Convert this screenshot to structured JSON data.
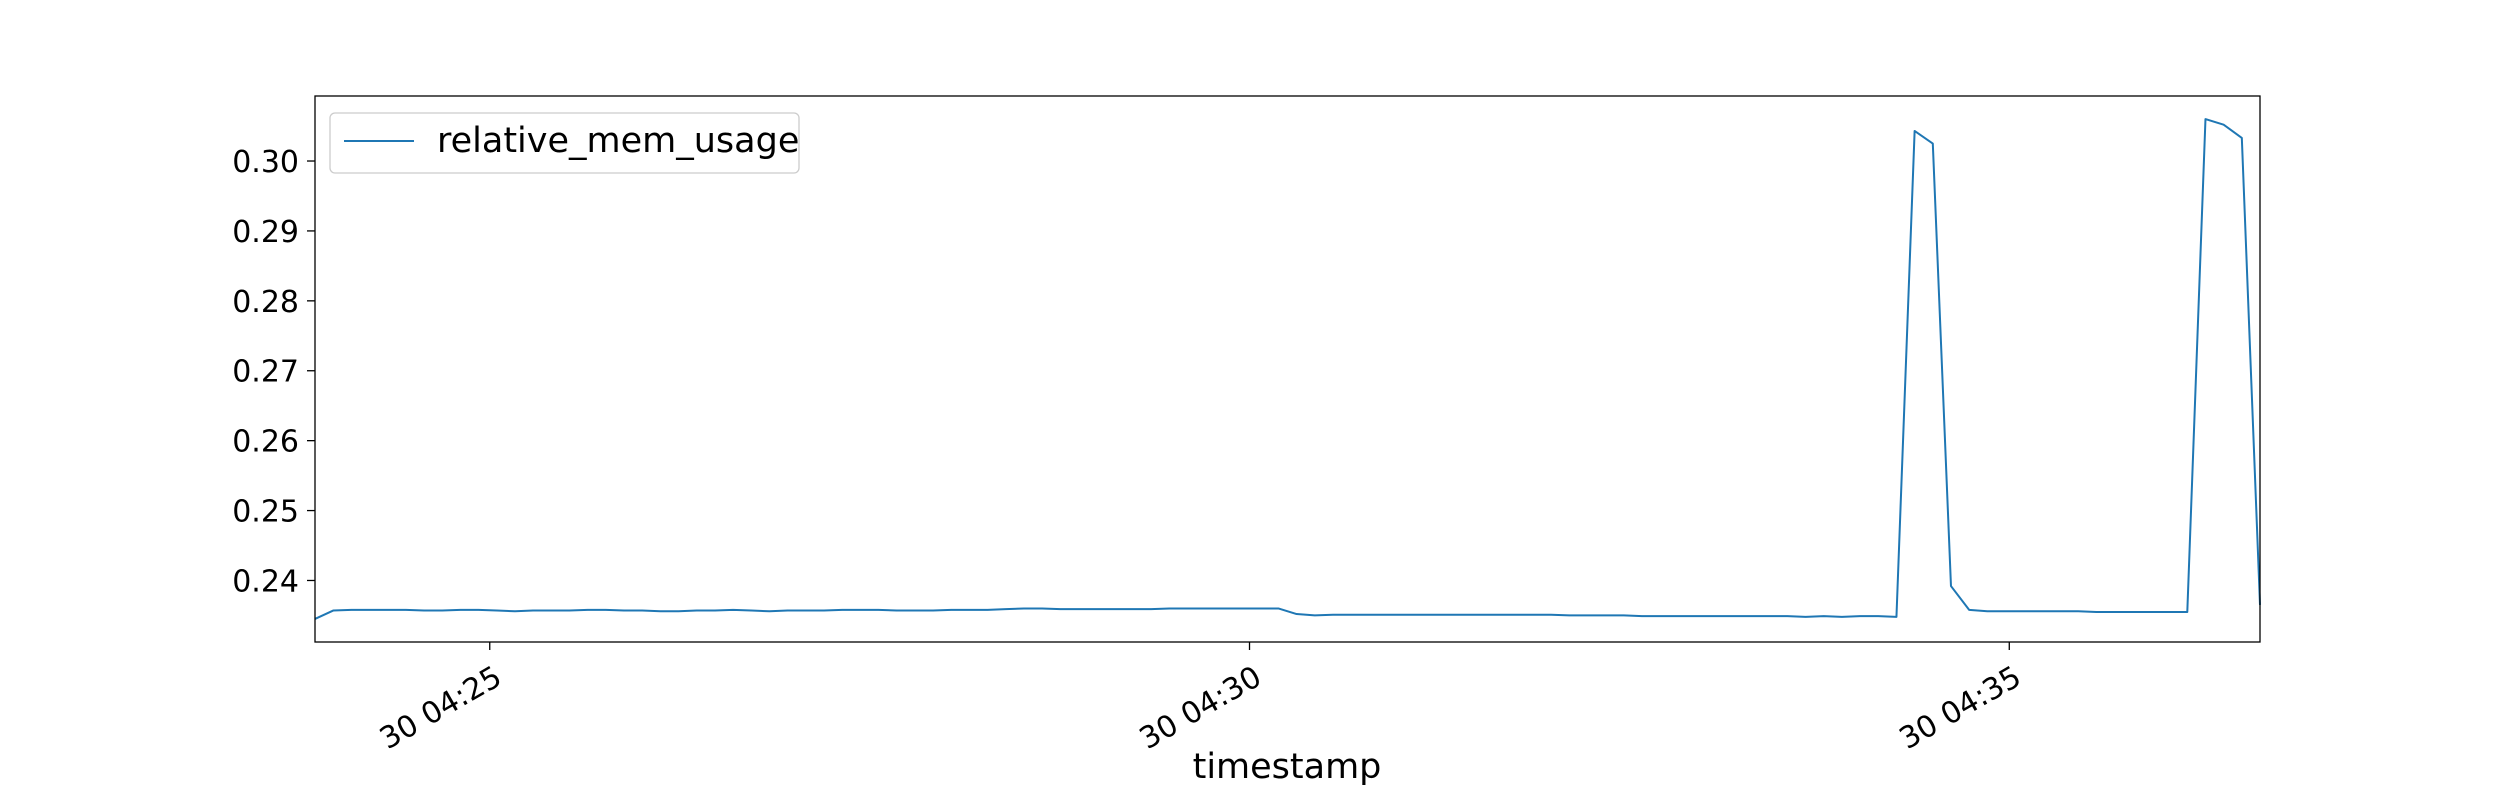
{
  "chart_data": {
    "type": "line",
    "title": "",
    "xlabel": "timestamp",
    "ylabel": "",
    "x_start": "04:23:51",
    "x_end": "04:36:39",
    "xlim": [
      "04:23:51",
      "04:36:39"
    ],
    "ylim": [
      0.2312,
      0.3093
    ],
    "x_ticks": [
      {
        "value": "04:25",
        "label": "30 04:25"
      },
      {
        "value": "04:30",
        "label": "30 04:30"
      },
      {
        "value": "04:35",
        "label": "30 04:35"
      }
    ],
    "y_ticks": [
      {
        "value": 0.24,
        "label": "0.24"
      },
      {
        "value": 0.25,
        "label": "0.25"
      },
      {
        "value": 0.26,
        "label": "0.26"
      },
      {
        "value": 0.27,
        "label": "0.27"
      },
      {
        "value": 0.28,
        "label": "0.28"
      },
      {
        "value": 0.29,
        "label": "0.29"
      },
      {
        "value": 0.3,
        "label": "0.30"
      }
    ],
    "grid": false,
    "legend_position": "top-left",
    "series": [
      {
        "name": "relative_mem_usage",
        "color": "#1f77b4",
        "values": [
          0.2345,
          0.2357,
          0.2358,
          0.2358,
          0.2358,
          0.2358,
          0.2357,
          0.2357,
          0.2358,
          0.2358,
          0.2357,
          0.2356,
          0.2357,
          0.2357,
          0.2357,
          0.2358,
          0.2358,
          0.2357,
          0.2357,
          0.2356,
          0.2356,
          0.2357,
          0.2357,
          0.2358,
          0.2357,
          0.2356,
          0.2357,
          0.2357,
          0.2357,
          0.2358,
          0.2358,
          0.2358,
          0.2357,
          0.2357,
          0.2357,
          0.2358,
          0.2358,
          0.2358,
          0.2359,
          0.236,
          0.236,
          0.2359,
          0.2359,
          0.2359,
          0.2359,
          0.2359,
          0.2359,
          0.236,
          0.236,
          0.236,
          0.236,
          0.236,
          0.236,
          0.236,
          0.2352,
          0.235,
          0.2351,
          0.2351,
          0.2351,
          0.2351,
          0.2351,
          0.2351,
          0.2351,
          0.2351,
          0.2351,
          0.2351,
          0.2351,
          0.2351,
          0.2351,
          0.235,
          0.235,
          0.235,
          0.235,
          0.2349,
          0.2349,
          0.2349,
          0.2349,
          0.2349,
          0.2349,
          0.2349,
          0.2349,
          0.2349,
          0.2348,
          0.2349,
          0.2348,
          0.2349,
          0.2349,
          0.2348,
          0.3043,
          0.3025,
          0.2392,
          0.2358,
          0.2356,
          0.2356,
          0.2356,
          0.2356,
          0.2356,
          0.2356,
          0.2355,
          0.2355,
          0.2355,
          0.2355,
          0.2355,
          0.2355,
          0.306,
          0.3052,
          0.3033,
          0.2365
        ]
      }
    ]
  }
}
